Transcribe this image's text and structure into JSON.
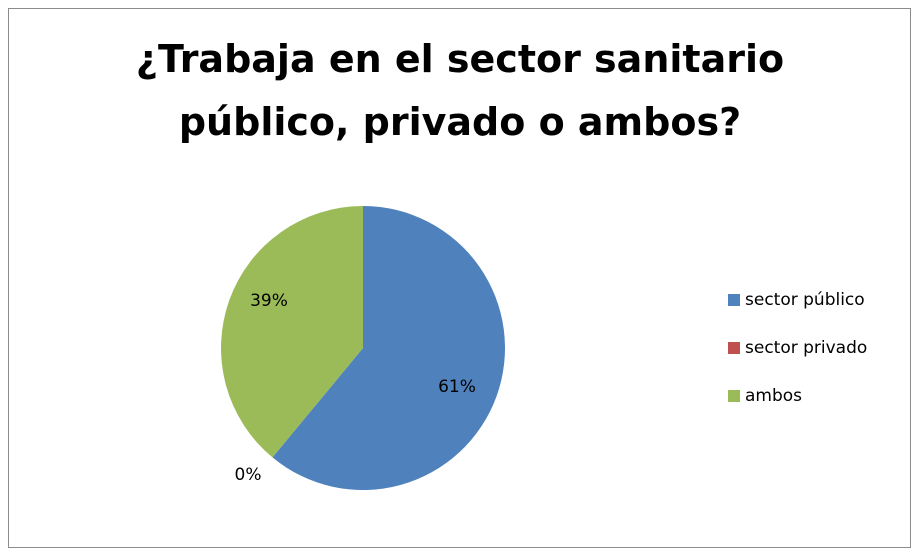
{
  "chart_data": {
    "type": "pie",
    "title": "¿Trabaja en el sector sanitario público, privado o ambos?",
    "title_lines": [
      "¿Trabaja en el sector sanitario",
      "público, privado o ambos?"
    ],
    "categories": [
      "sector público",
      "sector privado",
      "ambos"
    ],
    "values": [
      61,
      0,
      39
    ],
    "data_labels": [
      "61%",
      "0%",
      "39%"
    ],
    "colors": [
      "#4F81BD",
      "#C0504D",
      "#9BBB59"
    ],
    "legend_position": "right",
    "start_angle": "top, clockwise"
  }
}
